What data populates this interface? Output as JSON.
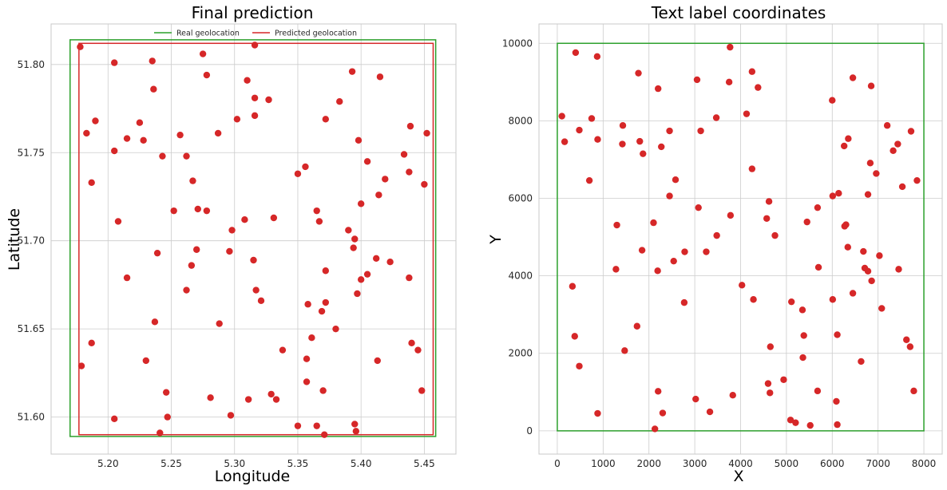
{
  "chart_data": [
    {
      "type": "scatter",
      "title": "Final prediction",
      "xlabel": "Longitude",
      "ylabel": "Latitude",
      "xlim": [
        5.155,
        5.475
      ],
      "ylim": [
        51.579,
        51.823
      ],
      "xticks": [
        5.2,
        5.25,
        5.3,
        5.35,
        5.4,
        5.45
      ],
      "xtick_labels": [
        "5.20",
        "5.25",
        "5.30",
        "5.35",
        "5.40",
        "5.45"
      ],
      "yticks": [
        51.6,
        51.65,
        51.7,
        51.75,
        51.8
      ],
      "ytick_labels": [
        "51.60",
        "51.65",
        "51.70",
        "51.75",
        "51.80"
      ],
      "grid": true,
      "legend_position": "top-center",
      "legend": [
        {
          "label": "Real geolocation",
          "color": "#2ca02c"
        },
        {
          "label": "Predicted geolocation",
          "color": "#d62728"
        }
      ],
      "real_box": {
        "x0": 5.17,
        "x1": 5.459,
        "y0": 51.589,
        "y1": 51.814,
        "color": "#2ca02c"
      },
      "predicted_box": {
        "x0": 5.177,
        "x1": 5.457,
        "y0": 51.59,
        "y1": 51.812,
        "color": "#d62728"
      },
      "points_color": "#d62728",
      "points": [
        [
          5.178,
          51.81
        ],
        [
          5.205,
          51.801
        ],
        [
          5.235,
          51.802
        ],
        [
          5.275,
          51.806
        ],
        [
          5.316,
          51.811
        ],
        [
          5.393,
          51.796
        ],
        [
          5.415,
          51.793
        ],
        [
          5.278,
          51.794
        ],
        [
          5.236,
          51.786
        ],
        [
          5.31,
          51.791
        ],
        [
          5.316,
          51.781
        ],
        [
          5.327,
          51.78
        ],
        [
          5.383,
          51.779
        ],
        [
          5.19,
          51.768
        ],
        [
          5.225,
          51.767
        ],
        [
          5.302,
          51.769
        ],
        [
          5.316,
          51.771
        ],
        [
          5.372,
          51.769
        ],
        [
          5.439,
          51.765
        ],
        [
          5.183,
          51.761
        ],
        [
          5.215,
          51.758
        ],
        [
          5.228,
          51.757
        ],
        [
          5.257,
          51.76
        ],
        [
          5.287,
          51.761
        ],
        [
          5.398,
          51.757
        ],
        [
          5.452,
          51.761
        ],
        [
          5.205,
          51.751
        ],
        [
          5.243,
          51.748
        ],
        [
          5.262,
          51.748
        ],
        [
          5.434,
          51.749
        ],
        [
          5.405,
          51.745
        ],
        [
          5.35,
          51.738
        ],
        [
          5.356,
          51.742
        ],
        [
          5.438,
          51.739
        ],
        [
          5.45,
          51.732
        ],
        [
          5.419,
          51.735
        ],
        [
          5.187,
          51.733
        ],
        [
          5.267,
          51.734
        ],
        [
          5.414,
          51.726
        ],
        [
          5.4,
          51.721
        ],
        [
          5.252,
          51.717
        ],
        [
          5.271,
          51.718
        ],
        [
          5.278,
          51.717
        ],
        [
          5.365,
          51.717
        ],
        [
          5.208,
          51.711
        ],
        [
          5.308,
          51.712
        ],
        [
          5.331,
          51.713
        ],
        [
          5.367,
          51.711
        ],
        [
          5.298,
          51.706
        ],
        [
          5.39,
          51.706
        ],
        [
          5.395,
          51.701
        ],
        [
          5.394,
          51.696
        ],
        [
          5.27,
          51.695
        ],
        [
          5.296,
          51.694
        ],
        [
          5.239,
          51.693
        ],
        [
          5.315,
          51.689
        ],
        [
          5.412,
          51.69
        ],
        [
          5.423,
          51.688
        ],
        [
          5.266,
          51.686
        ],
        [
          5.372,
          51.683
        ],
        [
          5.215,
          51.679
        ],
        [
          5.4,
          51.678
        ],
        [
          5.405,
          51.681
        ],
        [
          5.438,
          51.679
        ],
        [
          5.262,
          51.672
        ],
        [
          5.317,
          51.672
        ],
        [
          5.321,
          51.666
        ],
        [
          5.397,
          51.67
        ],
        [
          5.358,
          51.664
        ],
        [
          5.372,
          51.665
        ],
        [
          5.369,
          51.66
        ],
        [
          5.237,
          51.654
        ],
        [
          5.288,
          51.653
        ],
        [
          5.38,
          51.65
        ],
        [
          5.187,
          51.642
        ],
        [
          5.361,
          51.645
        ],
        [
          5.338,
          51.638
        ],
        [
          5.44,
          51.642
        ],
        [
          5.445,
          51.638
        ],
        [
          5.23,
          51.632
        ],
        [
          5.357,
          51.633
        ],
        [
          5.413,
          51.632
        ],
        [
          5.179,
          51.629
        ],
        [
          5.357,
          51.62
        ],
        [
          5.246,
          51.614
        ],
        [
          5.281,
          51.611
        ],
        [
          5.311,
          51.61
        ],
        [
          5.329,
          51.613
        ],
        [
          5.333,
          51.61
        ],
        [
          5.37,
          51.615
        ],
        [
          5.448,
          51.615
        ],
        [
          5.205,
          51.599
        ],
        [
          5.247,
          51.6
        ],
        [
          5.297,
          51.601
        ],
        [
          5.35,
          51.595
        ],
        [
          5.365,
          51.595
        ],
        [
          5.395,
          51.596
        ],
        [
          5.396,
          51.592
        ],
        [
          5.241,
          51.591
        ],
        [
          5.371,
          51.59
        ]
      ]
    },
    {
      "type": "scatter",
      "title": "Text label coordinates",
      "xlabel": "X",
      "ylabel": "Y",
      "xlim": [
        -400,
        8400
      ],
      "ylim": [
        -600,
        10500
      ],
      "xticks": [
        0,
        1000,
        2000,
        3000,
        4000,
        5000,
        6000,
        7000,
        8000
      ],
      "xtick_labels": [
        "0",
        "1000",
        "2000",
        "3000",
        "4000",
        "5000",
        "6000",
        "7000",
        "8000"
      ],
      "yticks": [
        0,
        2000,
        4000,
        6000,
        8000,
        10000
      ],
      "ytick_labels": [
        "0",
        "2000",
        "4000",
        "6000",
        "8000",
        "10000"
      ],
      "grid": true,
      "real_box": {
        "x0": 0,
        "x1": 8000,
        "y0": 0,
        "y1": 10000,
        "color": "#2ca02c"
      },
      "points_color": "#d62728",
      "points": [
        [
          400,
          9760
        ],
        [
          870,
          9660
        ],
        [
          3770,
          9900
        ],
        [
          1770,
          9230
        ],
        [
          2200,
          8830
        ],
        [
          3050,
          9060
        ],
        [
          3750,
          9000
        ],
        [
          4250,
          9270
        ],
        [
          4380,
          8860
        ],
        [
          6450,
          9110
        ],
        [
          6850,
          8900
        ],
        [
          100,
          8120
        ],
        [
          480,
          7760
        ],
        [
          750,
          8060
        ],
        [
          1430,
          7880
        ],
        [
          3130,
          7740
        ],
        [
          3470,
          8080
        ],
        [
          4130,
          8180
        ],
        [
          6000,
          8530
        ],
        [
          7200,
          7880
        ],
        [
          7720,
          7730
        ],
        [
          160,
          7460
        ],
        [
          880,
          7520
        ],
        [
          1420,
          7400
        ],
        [
          1800,
          7470
        ],
        [
          1870,
          7150
        ],
        [
          2270,
          7330
        ],
        [
          2450,
          7740
        ],
        [
          6260,
          7350
        ],
        [
          6350,
          7540
        ],
        [
          7330,
          7230
        ],
        [
          7430,
          7400
        ],
        [
          700,
          6460
        ],
        [
          2450,
          6060
        ],
        [
          2580,
          6480
        ],
        [
          4250,
          6760
        ],
        [
          6830,
          6910
        ],
        [
          6960,
          6640
        ],
        [
          7530,
          6300
        ],
        [
          7850,
          6460
        ],
        [
          1300,
          5310
        ],
        [
          2100,
          5370
        ],
        [
          3080,
          5760
        ],
        [
          3780,
          5560
        ],
        [
          4570,
          5480
        ],
        [
          4620,
          5920
        ],
        [
          5450,
          5390
        ],
        [
          5680,
          5760
        ],
        [
          6010,
          6060
        ],
        [
          6140,
          6130
        ],
        [
          6270,
          5280
        ],
        [
          6300,
          5320
        ],
        [
          6780,
          6100
        ],
        [
          1850,
          4660
        ],
        [
          2540,
          4380
        ],
        [
          2780,
          4620
        ],
        [
          3250,
          4620
        ],
        [
          3480,
          5040
        ],
        [
          4750,
          5040
        ],
        [
          6340,
          4740
        ],
        [
          6680,
          4630
        ],
        [
          7030,
          4520
        ],
        [
          1280,
          4170
        ],
        [
          2190,
          4130
        ],
        [
          4030,
          3760
        ],
        [
          5700,
          4220
        ],
        [
          6710,
          4200
        ],
        [
          6780,
          4120
        ],
        [
          6860,
          3870
        ],
        [
          7450,
          4170
        ],
        [
          330,
          3730
        ],
        [
          2770,
          3310
        ],
        [
          4280,
          3390
        ],
        [
          5110,
          3330
        ],
        [
          5350,
          3120
        ],
        [
          6010,
          3390
        ],
        [
          6450,
          3550
        ],
        [
          7080,
          3160
        ],
        [
          1740,
          2700
        ],
        [
          1470,
          2070
        ],
        [
          4650,
          2170
        ],
        [
          5380,
          2460
        ],
        [
          6110,
          2480
        ],
        [
          7620,
          2350
        ],
        [
          7700,
          2170
        ],
        [
          380,
          2440
        ],
        [
          480,
          1670
        ],
        [
          5360,
          1890
        ],
        [
          6630,
          1790
        ],
        [
          4600,
          1220
        ],
        [
          4940,
          1320
        ],
        [
          4640,
          980
        ],
        [
          5680,
          1030
        ],
        [
          7780,
          1030
        ],
        [
          880,
          450
        ],
        [
          2200,
          1020
        ],
        [
          2300,
          460
        ],
        [
          3020,
          820
        ],
        [
          3330,
          490
        ],
        [
          3830,
          920
        ],
        [
          5090,
          280
        ],
        [
          5200,
          210
        ],
        [
          5520,
          140
        ],
        [
          6090,
          760
        ],
        [
          6110,
          160
        ],
        [
          2130,
          50
        ]
      ]
    }
  ]
}
